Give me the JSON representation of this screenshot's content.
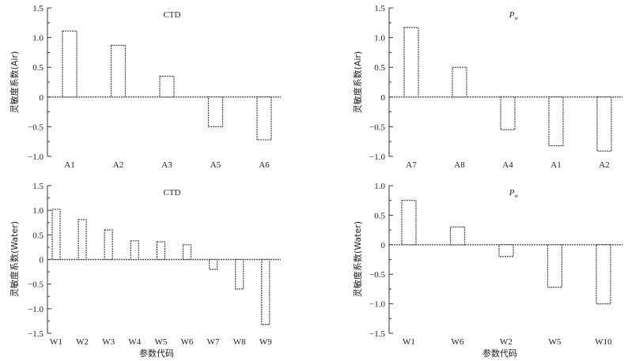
{
  "figure": {
    "xlabel": "参数代码"
  },
  "chart_data": [
    {
      "type": "bar",
      "title": "CTD",
      "ylabel": "灵敏度系数(Air)",
      "ylim": [
        -1.0,
        1.5
      ],
      "yticks": [
        -1.0,
        -0.5,
        0,
        0.5,
        1.0,
        1.5
      ],
      "ytick_labels": [
        "−1.0",
        "−0.5",
        "0",
        "0.5",
        "1.0",
        "1.5"
      ],
      "categories": [
        "A1",
        "A2",
        "A3",
        "A5",
        "A6"
      ],
      "values": [
        1.11,
        0.87,
        0.35,
        -0.5,
        -0.72
      ]
    },
    {
      "type": "bar",
      "title": "P",
      "title_subscript": "w",
      "ylabel": "灵敏度系数(Air)",
      "ylim": [
        -1.0,
        1.5
      ],
      "yticks": [
        -1.0,
        -0.5,
        0,
        0.5,
        1.0,
        1.5
      ],
      "ytick_labels": [
        "−1.0",
        "−0.5",
        "0",
        "0.5",
        "1.0",
        "1.5"
      ],
      "categories": [
        "A7",
        "A8",
        "A4",
        "A1",
        "A2"
      ],
      "values": [
        1.17,
        0.5,
        -0.55,
        -0.82,
        -0.91
      ]
    },
    {
      "type": "bar",
      "title": "CTD",
      "ylabel": "灵敏度系数(Water)",
      "ylim": [
        -1.5,
        1.5
      ],
      "yticks": [
        -1.5,
        -1.0,
        -0.5,
        0,
        0.5,
        1.0,
        1.5
      ],
      "ytick_labels": [
        "−1.5",
        "−1.0",
        "−0.5",
        "0",
        "0.5",
        "1.0",
        "1.5"
      ],
      "categories": [
        "W1",
        "W2",
        "W3",
        "W4",
        "W5",
        "W6",
        "W7",
        "W8",
        "W9"
      ],
      "values": [
        1.02,
        0.81,
        0.6,
        0.38,
        0.36,
        0.3,
        -0.2,
        -0.6,
        -1.32
      ]
    },
    {
      "type": "bar",
      "title": "P",
      "title_subscript": "w",
      "ylabel": "灵敏度系数(Water)",
      "ylim": [
        -1.5,
        1.0
      ],
      "yticks": [
        -1.5,
        -1.0,
        -0.5,
        0,
        0.5,
        1.0
      ],
      "ytick_labels": [
        "−1.5",
        "−1.0",
        "−0.5",
        "0",
        "0.5",
        "1.0"
      ],
      "categories": [
        "W1",
        "W6",
        "W2",
        "W5",
        "W10"
      ],
      "values": [
        0.75,
        0.3,
        -0.2,
        -0.72,
        -1.0
      ]
    }
  ]
}
